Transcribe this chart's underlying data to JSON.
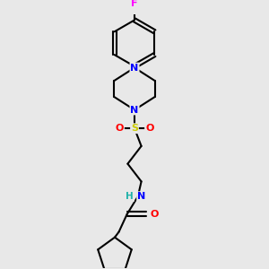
{
  "background_color": "#e8e8e8",
  "bond_color": "#000000",
  "atom_colors": {
    "F": "#ff00ff",
    "N": "#0000ff",
    "O": "#ff0000",
    "S": "#cccc00",
    "H": "#20b2aa",
    "C": "#000000"
  },
  "line_width": 1.5,
  "figsize": [
    3.0,
    3.0
  ],
  "dpi": 100
}
